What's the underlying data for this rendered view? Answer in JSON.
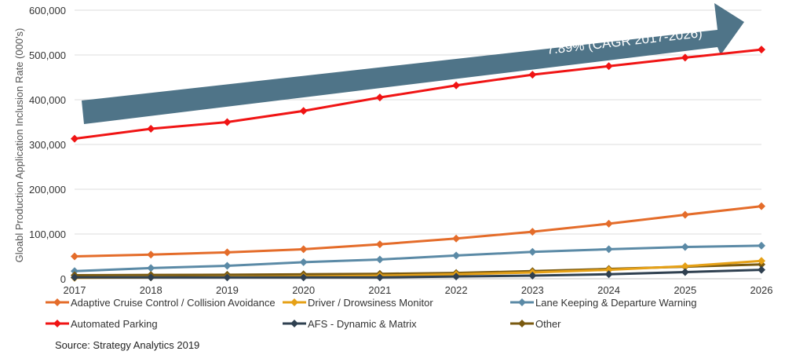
{
  "chart_data": {
    "type": "line",
    "title": "",
    "ylabel": "Gloabl Production Application Inclusion Rate (000's)",
    "x": [
      "2017",
      "2018",
      "2019",
      "2020",
      "2021",
      "2022",
      "2023",
      "2024",
      "2025",
      "2026"
    ],
    "yticks": [
      "0",
      "100,000",
      "200,000",
      "300,000",
      "400,000",
      "500,000",
      "600,000"
    ],
    "ylim": [
      0,
      600000
    ],
    "grid": true,
    "legend_position": "bottom",
    "series": [
      {
        "name": "Adaptive Cruise Control / Collision Avoidance",
        "color": "#E46C2A",
        "values": [
          50000,
          54000,
          59000,
          66000,
          77000,
          90000,
          105000,
          123000,
          143000,
          162000
        ]
      },
      {
        "name": "Driver / Drowsiness Monitor",
        "color": "#E6A117",
        "values": [
          2000,
          3000,
          4000,
          5000,
          7000,
          10000,
          14000,
          20000,
          28000,
          40000
        ]
      },
      {
        "name": "Lane Keeping & Departure Warning",
        "color": "#5B8AA6",
        "values": [
          17000,
          24000,
          29000,
          37000,
          43000,
          52000,
          60000,
          66000,
          71000,
          74000
        ]
      },
      {
        "name": "Automated Parking",
        "color": "#F01414",
        "values": [
          313000,
          335000,
          350000,
          375000,
          405000,
          432000,
          456000,
          475000,
          494000,
          512000
        ]
      },
      {
        "name": "AFS - Dynamic & Matrix",
        "color": "#2F4050",
        "values": [
          3000,
          3000,
          3000,
          3000,
          3000,
          5000,
          7000,
          10000,
          15000,
          20000
        ]
      },
      {
        "name": "Other",
        "color": "#7A5A10",
        "values": [
          8000,
          8500,
          9000,
          10000,
          11000,
          13000,
          17000,
          22000,
          27000,
          32000
        ]
      }
    ],
    "annotation": "7.89% (CAGR 2017-2026)",
    "annotation_color": "#4F7488"
  },
  "source": "Source: Strategy Analytics 2019"
}
